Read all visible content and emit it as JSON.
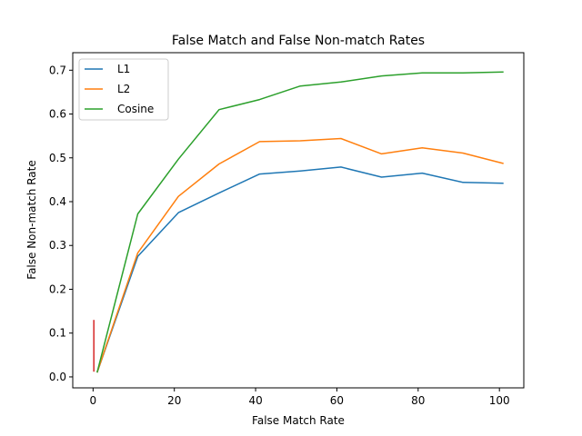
{
  "chart_data": {
    "type": "line",
    "title": "False Match and False Non-match Rates",
    "xlabel": "False Match Rate",
    "ylabel": "False Non-match Rate",
    "xlim": [
      -5,
      106
    ],
    "ylim": [
      -0.025,
      0.74
    ],
    "xticks": [
      0,
      20,
      40,
      60,
      80,
      100
    ],
    "yticks": [
      0.0,
      0.1,
      0.2,
      0.3,
      0.4,
      0.5,
      0.6,
      0.7
    ],
    "xtick_labels": [
      "0",
      "20",
      "40",
      "60",
      "80",
      "100"
    ],
    "ytick_labels": [
      "0.0",
      "0.1",
      "0.2",
      "0.3",
      "0.4",
      "0.5",
      "0.6",
      "0.7"
    ],
    "grid": false,
    "legend_position": "upper-left",
    "series": [
      {
        "name": "L1",
        "color": "#1f77b4",
        "x": [
          1,
          11,
          21,
          31,
          41,
          51,
          61,
          71,
          81,
          91,
          101
        ],
        "y": [
          0.01,
          0.275,
          0.375,
          0.42,
          0.463,
          0.47,
          0.479,
          0.456,
          0.465,
          0.444,
          0.442
        ]
      },
      {
        "name": "L2",
        "color": "#ff7f0e",
        "x": [
          1,
          11,
          21,
          31,
          41,
          51,
          61,
          71,
          81,
          91,
          101
        ],
        "y": [
          0.01,
          0.283,
          0.412,
          0.486,
          0.537,
          0.539,
          0.544,
          0.509,
          0.523,
          0.511,
          0.487
        ]
      },
      {
        "name": "Cosine",
        "color": "#2ca02c",
        "x": [
          1,
          11,
          21,
          31,
          41,
          51,
          61,
          71,
          81,
          91,
          101
        ],
        "y": [
          0.01,
          0.372,
          0.497,
          0.61,
          0.633,
          0.664,
          0.673,
          0.687,
          0.694,
          0.694,
          0.696
        ]
      },
      {
        "color": "#d62728",
        "x": [
          0.2,
          0.2
        ],
        "y": [
          0.13,
          0.012
        ]
      }
    ]
  }
}
